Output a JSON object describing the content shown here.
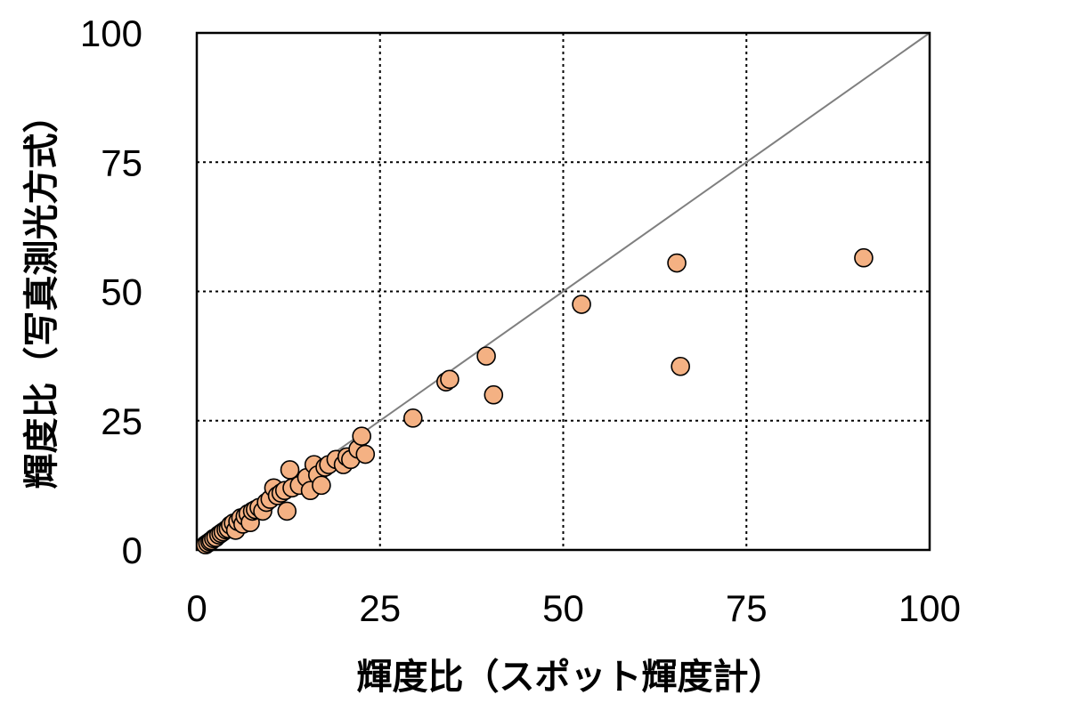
{
  "chart_data": {
    "type": "scatter",
    "title": "",
    "xlabel": "輝度比（スポット輝度計）",
    "ylabel": "輝度比（写真測光方式）",
    "xlim": [
      0,
      100
    ],
    "ylim": [
      0,
      100
    ],
    "x_ticks": [
      "0",
      "25",
      "50",
      "75",
      "100"
    ],
    "y_ticks": [
      "0",
      "25",
      "50",
      "75",
      "100"
    ],
    "grid": true,
    "legend": "none",
    "reference_line": {
      "from": [
        0,
        0
      ],
      "to": [
        100,
        100
      ],
      "color": "#7f7f7f"
    },
    "marker_color": "#f4b183",
    "marker_edge_color": "#000000",
    "series": [
      {
        "x": [
          1.2,
          1.5,
          1.8,
          2.0,
          2.3,
          2.6,
          3.0,
          3.3,
          3.6,
          4.0,
          4.3,
          4.6,
          5.0,
          5.3,
          5.6,
          6.0,
          6.3,
          6.6,
          7.0,
          7.3,
          7.6,
          8.0,
          8.5,
          9.0,
          9.5,
          10.0,
          10.5,
          11.0,
          11.5,
          12.0,
          12.3,
          12.7,
          13.0,
          14.0,
          15.0,
          15.5,
          16.0,
          16.5,
          17.0,
          17.5,
          18.0,
          19.0,
          20.0,
          20.5,
          21.0,
          22.0,
          22.5,
          23.0,
          29.5,
          34.0,
          34.5,
          39.5,
          40.5,
          52.5,
          65.5,
          66.0,
          91.0
        ],
        "y": [
          1.0,
          1.3,
          1.6,
          1.8,
          2.2,
          2.4,
          2.9,
          3.2,
          3.5,
          3.9,
          4.1,
          4.8,
          5.2,
          3.8,
          5.5,
          6.2,
          5.0,
          6.5,
          7.0,
          5.3,
          7.5,
          7.8,
          8.2,
          7.5,
          9.2,
          9.8,
          12.0,
          10.5,
          11.0,
          11.5,
          7.5,
          15.5,
          12.0,
          12.5,
          14.0,
          11.5,
          16.5,
          14.5,
          12.5,
          16.0,
          16.5,
          17.5,
          16.5,
          18.0,
          17.5,
          19.5,
          22.0,
          18.5,
          25.5,
          32.5,
          33.0,
          37.5,
          30.0,
          47.5,
          55.5,
          35.5,
          56.5
        ]
      }
    ]
  }
}
